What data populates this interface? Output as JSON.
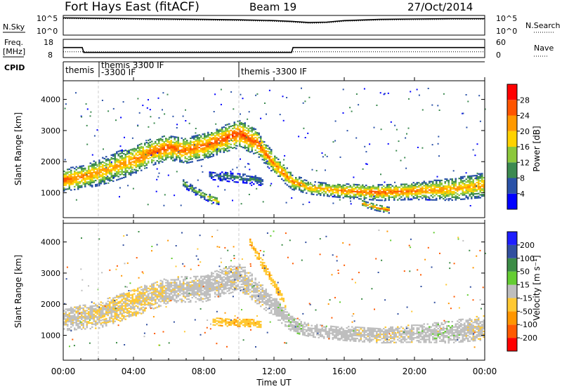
{
  "header": {
    "title": "Fort Hays East (fitACF)",
    "beam": "Beam 19",
    "date": "27/Oct/2014"
  },
  "noise_panel": {
    "left_label": "N.Sky",
    "left_ticks": [
      "10^5",
      "10^0"
    ],
    "right_ticks": [
      "10^5",
      "10^0"
    ],
    "right_label": "N.Search"
  },
  "freq_panel": {
    "left_label_line1": "Freq.",
    "left_label_line2": "[MHz]",
    "left_ticks": [
      "18",
      "8"
    ],
    "right_ticks": [
      "60",
      "0"
    ],
    "right_label": "Nave"
  },
  "cpid": {
    "label": "CPID",
    "entries": [
      "themis",
      "themis 3300 IF",
      "-3300 IF",
      "themis -3300 IF"
    ]
  },
  "x_axis": {
    "label": "Time UT",
    "ticks": [
      "00:00",
      "04:00",
      "08:00",
      "12:00",
      "16:00",
      "20:00",
      "00:00"
    ]
  },
  "power_colorbar": {
    "label": "Power [dB]",
    "ticks": [
      "28",
      "24",
      "20",
      "16",
      "12",
      "8",
      "4"
    ],
    "colors": [
      "#0000ff",
      "#2a52a8",
      "#3c8a50",
      "#8cc83c",
      "#ffd200",
      "#ff9900",
      "#ff5500",
      "#ff0000"
    ]
  },
  "velocity_colorbar": {
    "label": "Velocity [m s⁻¹]",
    "ticks": [
      "200",
      "100",
      "50",
      "15",
      "-15",
      "-50",
      "-100",
      "-200"
    ],
    "colors": [
      "#ff0000",
      "#ff5a00",
      "#ff9600",
      "#ffc832",
      "#bebebe",
      "#64cd32",
      "#3c8c46",
      "#3250a0",
      "#1e1eff"
    ]
  },
  "chart_data": [
    {
      "type": "line",
      "title": "N.Sky / N.Search",
      "x": [
        "00:00",
        "02:00",
        "04:00",
        "06:00",
        "08:00",
        "10:00",
        "12:00",
        "13:00",
        "14:00",
        "15:00",
        "16:00",
        "18:00",
        "20:00",
        "22:00",
        "24:00"
      ],
      "series": [
        {
          "name": "N.Sky",
          "values": [
            4.4,
            4.3,
            4.2,
            4.1,
            4.0,
            3.9,
            3.7,
            3.5,
            3.2,
            3.3,
            3.7,
            4.0,
            4.1,
            4.2,
            4.2
          ]
        },
        {
          "name": "N.Search",
          "values": [
            4.2,
            4.1,
            4.0,
            3.9,
            3.8,
            3.7,
            3.5,
            3.3,
            3.0,
            3.1,
            3.5,
            3.8,
            3.9,
            4.0,
            4.0
          ]
        }
      ],
      "ylim": [
        0,
        5
      ]
    },
    {
      "type": "line",
      "title": "Freq. [MHz] / Nave",
      "x": [
        "00:00",
        "01:05",
        "01:10",
        "13:00",
        "13:05",
        "24:00"
      ],
      "series": [
        {
          "name": "Freq.",
          "values": [
            13.5,
            13.5,
            10.8,
            10.8,
            13.5,
            13.5
          ]
        },
        {
          "name": "Nave",
          "values": [
            19,
            19,
            19,
            19,
            19,
            19
          ]
        }
      ],
      "ylim": [
        8,
        18
      ]
    },
    {
      "type": "heatmap",
      "title": "Power [dB]",
      "xlabel": "Time UT",
      "ylabel": "Slant Range [km]",
      "xlim": [
        0,
        24
      ],
      "ylim": [
        200,
        4600
      ],
      "yticks": [
        1000,
        2000,
        3000,
        4000
      ],
      "clim": [
        0,
        32
      ],
      "bands": [
        {
          "x": [
            0.0,
            1.0,
            2.0,
            3.0,
            4.0,
            5.0,
            6.0,
            7.0,
            8.0,
            9.0,
            10.0,
            11.0,
            12.0,
            13.0,
            14.0,
            16.0,
            18.0,
            20.0,
            22.0,
            24.0
          ],
          "center_km": [
            1400,
            1500,
            1650,
            1850,
            2050,
            2300,
            2450,
            2350,
            2500,
            2700,
            2900,
            2600,
            1900,
            1350,
            1150,
            1050,
            1000,
            1050,
            1100,
            1250
          ],
          "width_km": [
            700,
            750,
            850,
            900,
            900,
            850,
            800,
            800,
            850,
            850,
            900,
            800,
            650,
            500,
            400,
            450,
            500,
            550,
            700,
            800
          ],
          "peak_db": [
            26,
            24,
            22,
            22,
            24,
            26,
            27,
            25,
            25,
            27,
            28,
            26,
            24,
            24,
            22,
            24,
            26,
            24,
            22,
            22
          ]
        },
        {
          "x": [
            6.8,
            7.5,
            8.2,
            8.8
          ],
          "center_km": [
            1300,
            1050,
            850,
            720
          ],
          "width_km": [
            250,
            250,
            250,
            200
          ],
          "peak_db": [
            12,
            14,
            18,
            20
          ]
        },
        {
          "x": [
            8.3,
            9.5,
            10.5,
            11.3
          ],
          "center_km": [
            1550,
            1500,
            1450,
            1350
          ],
          "width_km": [
            250,
            300,
            300,
            250
          ],
          "peak_db": [
            8,
            10,
            10,
            9
          ]
        },
        {
          "x": [
            17.0,
            17.8,
            18.6
          ],
          "center_km": [
            650,
            520,
            420
          ],
          "width_km": [
            200,
            200,
            180
          ],
          "peak_db": [
            22,
            24,
            26
          ]
        }
      ]
    },
    {
      "type": "heatmap",
      "title": "Velocity [m s⁻¹]",
      "xlabel": "Time UT",
      "ylabel": "Slant Range [km]",
      "xlim": [
        0,
        24
      ],
      "ylim": [
        200,
        4600
      ],
      "yticks": [
        1000,
        2000,
        3000,
        4000
      ],
      "clim": [
        -200,
        200
      ],
      "bands": [
        {
          "x": [
            0.0,
            2.0,
            4.0,
            6.0,
            8.0,
            10.0,
            12.0,
            13.0,
            14.0,
            16.0,
            18.0,
            20.0,
            22.0,
            24.0
          ],
          "center_km": [
            1500,
            1650,
            2050,
            2450,
            2500,
            2900,
            1900,
            1350,
            1150,
            1050,
            1000,
            1050,
            1100,
            1250
          ],
          "width_km": [
            700,
            850,
            900,
            800,
            850,
            900,
            650,
            500,
            400,
            450,
            500,
            550,
            700,
            800
          ],
          "velocity": [
            -5,
            -10,
            -20,
            -5,
            0,
            -5,
            0,
            5,
            0,
            0,
            -5,
            0,
            5,
            -10
          ]
        },
        {
          "x": [
            10.6,
            11.6,
            12.6
          ],
          "center_km": [
            4000,
            3000,
            2000
          ],
          "width_km": [
            300,
            300,
            300
          ],
          "velocity": [
            -40,
            -40,
            -40
          ]
        },
        {
          "x": [
            8.5,
            9.5,
            10.5,
            11.2
          ],
          "center_km": [
            1450,
            1400,
            1400,
            1350
          ],
          "width_km": [
            250,
            250,
            250,
            200
          ],
          "velocity": [
            -40,
            -40,
            -40,
            -40
          ]
        }
      ]
    }
  ]
}
